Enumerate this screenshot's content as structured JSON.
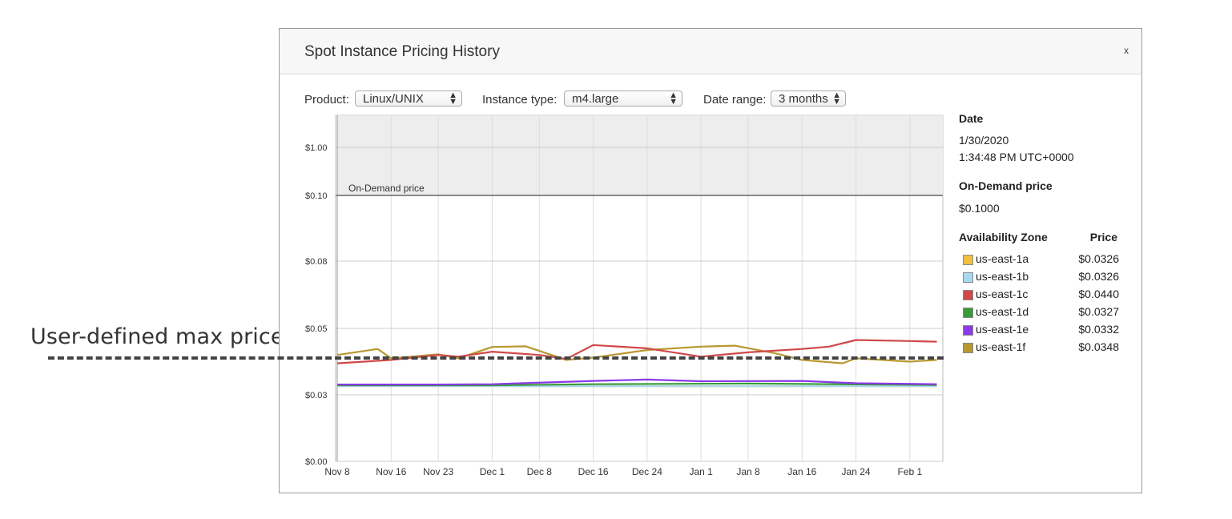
{
  "annotation": {
    "label": "User-defined max price",
    "value": 0.042
  },
  "dialog": {
    "title": "Spot Instance Pricing History",
    "close_label": "x"
  },
  "controls": {
    "product": {
      "label": "Product:",
      "value": "Linux/UNIX"
    },
    "instance_type": {
      "label": "Instance type:",
      "value": "m4.large"
    },
    "date_range": {
      "label": "Date range:",
      "value": "3 months"
    }
  },
  "details": {
    "date_header": "Date",
    "date_value": "1/30/2020",
    "time_value": "1:34:48 PM UTC+0000",
    "ondemand_header": "On-Demand price",
    "ondemand_value": "$0.1000",
    "zone_header": "Availability Zone",
    "price_header": "Price",
    "zones": [
      {
        "name": "us-east-1a",
        "price": "$0.0326",
        "color": "#f0c040"
      },
      {
        "name": "us-east-1b",
        "price": "$0.0326",
        "color": "#a8d8f0"
      },
      {
        "name": "us-east-1c",
        "price": "$0.0440",
        "color": "#d04848"
      },
      {
        "name": "us-east-1d",
        "price": "$0.0327",
        "color": "#3a9a3a"
      },
      {
        "name": "us-east-1e",
        "price": "$0.0332",
        "color": "#8a3ae8"
      },
      {
        "name": "us-east-1f",
        "price": "$0.0348",
        "color": "#b89830"
      }
    ]
  },
  "chart_data": {
    "type": "line",
    "title": "",
    "xlabel": "",
    "ylabel": "",
    "xlim": [
      "2019-11-08",
      "2020-02-05"
    ],
    "x_ticks": [
      "Nov 8",
      "Nov 16",
      "Nov 23",
      "Dec 1",
      "Dec 8",
      "Dec 16",
      "Dec 24",
      "Jan 1",
      "Jan 8",
      "Jan 16",
      "Jan 24",
      "Feb 1"
    ],
    "x_tick_dates": [
      "2019-11-08",
      "2019-11-16",
      "2019-11-23",
      "2019-12-01",
      "2019-12-08",
      "2019-12-16",
      "2019-12-24",
      "2020-01-01",
      "2020-01-08",
      "2020-01-16",
      "2020-01-24",
      "2020-02-01"
    ],
    "y_ticks": [
      "$0.00",
      "$0.03",
      "$0.05",
      "$0.08",
      "$0.10",
      "$1.00"
    ],
    "y_tick_values": [
      0.0,
      0.03,
      0.05,
      0.08,
      0.1,
      1.0
    ],
    "ondemand_label": "On-Demand price",
    "ondemand_value": 0.1,
    "grid": true,
    "series": [
      {
        "name": "us-east-1a",
        "color": "#f0c040",
        "x": [
          "2019-11-08",
          "2020-02-05"
        ],
        "y": [
          0.0326,
          0.0326
        ]
      },
      {
        "name": "us-east-1b",
        "color": "#a8d8f0",
        "x": [
          "2019-11-08",
          "2020-02-05"
        ],
        "y": [
          0.0326,
          0.0326
        ]
      },
      {
        "name": "us-east-1d",
        "color": "#3a9a3a",
        "x": [
          "2019-11-08",
          "2019-12-01",
          "2019-12-16",
          "2020-01-08",
          "2020-02-05"
        ],
        "y": [
          0.0329,
          0.0329,
          0.0332,
          0.0334,
          0.033
        ]
      },
      {
        "name": "us-east-1e",
        "color": "#8a3ae8",
        "x": [
          "2019-11-08",
          "2019-11-23",
          "2019-12-01",
          "2019-12-16",
          "2019-12-24",
          "2020-01-01",
          "2020-01-16",
          "2020-01-24",
          "2020-02-05"
        ],
        "y": [
          0.0331,
          0.0331,
          0.0332,
          0.0342,
          0.0346,
          0.0341,
          0.0342,
          0.0335,
          0.0332
        ]
      },
      {
        "name": "us-east-1f",
        "color": "#b89830",
        "x": [
          "2019-11-08",
          "2019-11-14",
          "2019-11-16",
          "2019-11-23",
          "2019-11-26",
          "2019-12-01",
          "2019-12-06",
          "2019-12-12",
          "2019-12-16",
          "2019-12-24",
          "2020-01-01",
          "2020-01-06",
          "2020-01-12",
          "2020-01-16",
          "2020-01-22",
          "2020-01-24",
          "2020-02-01",
          "2020-02-05"
        ],
        "y": [
          0.042,
          0.0438,
          0.041,
          0.0422,
          0.041,
          0.0444,
          0.0446,
          0.0405,
          0.0412,
          0.0435,
          0.0445,
          0.0448,
          0.0425,
          0.0405,
          0.0395,
          0.041,
          0.04,
          0.0405
        ]
      },
      {
        "name": "us-east-1c",
        "color": "#d04848",
        "x": [
          "2019-11-08",
          "2019-11-16",
          "2019-11-23",
          "2019-11-26",
          "2019-12-01",
          "2019-12-08",
          "2019-12-12",
          "2019-12-16",
          "2019-12-24",
          "2020-01-01",
          "2020-01-08",
          "2020-01-16",
          "2020-01-20",
          "2020-01-24",
          "2020-02-01",
          "2020-02-05"
        ],
        "y": [
          0.0395,
          0.0405,
          0.042,
          0.0415,
          0.043,
          0.042,
          0.0408,
          0.045,
          0.044,
          0.0415,
          0.0428,
          0.0438,
          0.0445,
          0.0465,
          0.0462,
          0.046
        ]
      }
    ]
  }
}
